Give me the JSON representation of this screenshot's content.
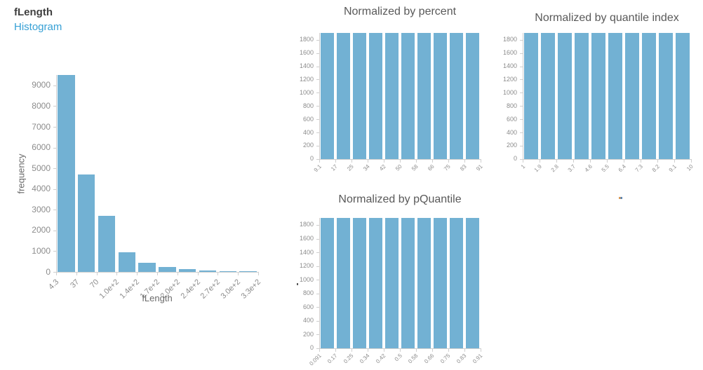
{
  "header": {
    "title": "fLength",
    "subtitle": "Histogram"
  },
  "colors": {
    "bar": "#72b1d3",
    "axis": "#cfcfcf",
    "tick_text": "#8c8c8c",
    "chart_title_text": "#595959",
    "card_title_text": "#3f3f3f",
    "link_text": "#36a0d5"
  },
  "chart_data": [
    {
      "id": "flength",
      "type": "bar",
      "title": "",
      "xlabel": "fLength",
      "ylabel": "frequency",
      "x_tick_labels": [
        "4.3",
        "37",
        "70",
        "1.0e+2",
        "1.4e+2",
        "1.7e+2",
        "2.0e+2",
        "2.4e+2",
        "2.7e+2",
        "3.0e+2",
        "3.3e+2"
      ],
      "values": [
        9500,
        4700,
        2700,
        950,
        450,
        250,
        140,
        60,
        30,
        20
      ],
      "y_ticks": [
        0,
        1000,
        2000,
        3000,
        4000,
        5000,
        6000,
        7000,
        8000,
        9000
      ],
      "ylim": [
        0,
        9500
      ],
      "grid": false,
      "legend": "none"
    },
    {
      "id": "percent",
      "type": "bar",
      "title": "Normalized by percent",
      "xlabel": "",
      "ylabel": "",
      "x_tick_labels": [
        "9.1",
        "17",
        "25",
        "34",
        "42",
        "50",
        "58",
        "66",
        "75",
        "83",
        "91"
      ],
      "values": [
        1902,
        1902,
        1902,
        1902,
        1902,
        1902,
        1902,
        1902,
        1902,
        1902
      ],
      "y_ticks": [
        0,
        200,
        400,
        600,
        800,
        1000,
        1200,
        1400,
        1600,
        1800
      ],
      "ylim": [
        0,
        1902
      ],
      "grid": false,
      "legend": "none"
    },
    {
      "id": "quantile-index",
      "type": "bar",
      "title": "Normalized by quantile index",
      "xlabel": "",
      "ylabel": "",
      "x_tick_labels": [
        "1",
        "1.9",
        "2.8",
        "3.7",
        "4.6",
        "5.5",
        "6.4",
        "7.3",
        "8.2",
        "9.1",
        "10"
      ],
      "values": [
        1902,
        1902,
        1902,
        1902,
        1902,
        1902,
        1902,
        1902,
        1902,
        1902
      ],
      "y_ticks": [
        0,
        200,
        400,
        600,
        800,
        1000,
        1200,
        1400,
        1600,
        1800
      ],
      "ylim": [
        0,
        1902
      ],
      "grid": false,
      "legend": "none"
    },
    {
      "id": "pquantile",
      "type": "bar",
      "title": "Normalized by pQuantile",
      "xlabel": "",
      "ylabel": "",
      "x_tick_labels": [
        "0.091",
        "0.17",
        "0.25",
        "0.34",
        "0.42",
        "0.5",
        "0.58",
        "0.66",
        "0.75",
        "0.83",
        "0.91"
      ],
      "values": [
        1902,
        1902,
        1902,
        1902,
        1902,
        1902,
        1902,
        1902,
        1902,
        1902
      ],
      "y_ticks": [
        0,
        200,
        400,
        600,
        800,
        1000,
        1200,
        1400,
        1600,
        1800
      ],
      "ylim": [
        0,
        1902
      ],
      "grid": false,
      "legend": "none"
    }
  ]
}
